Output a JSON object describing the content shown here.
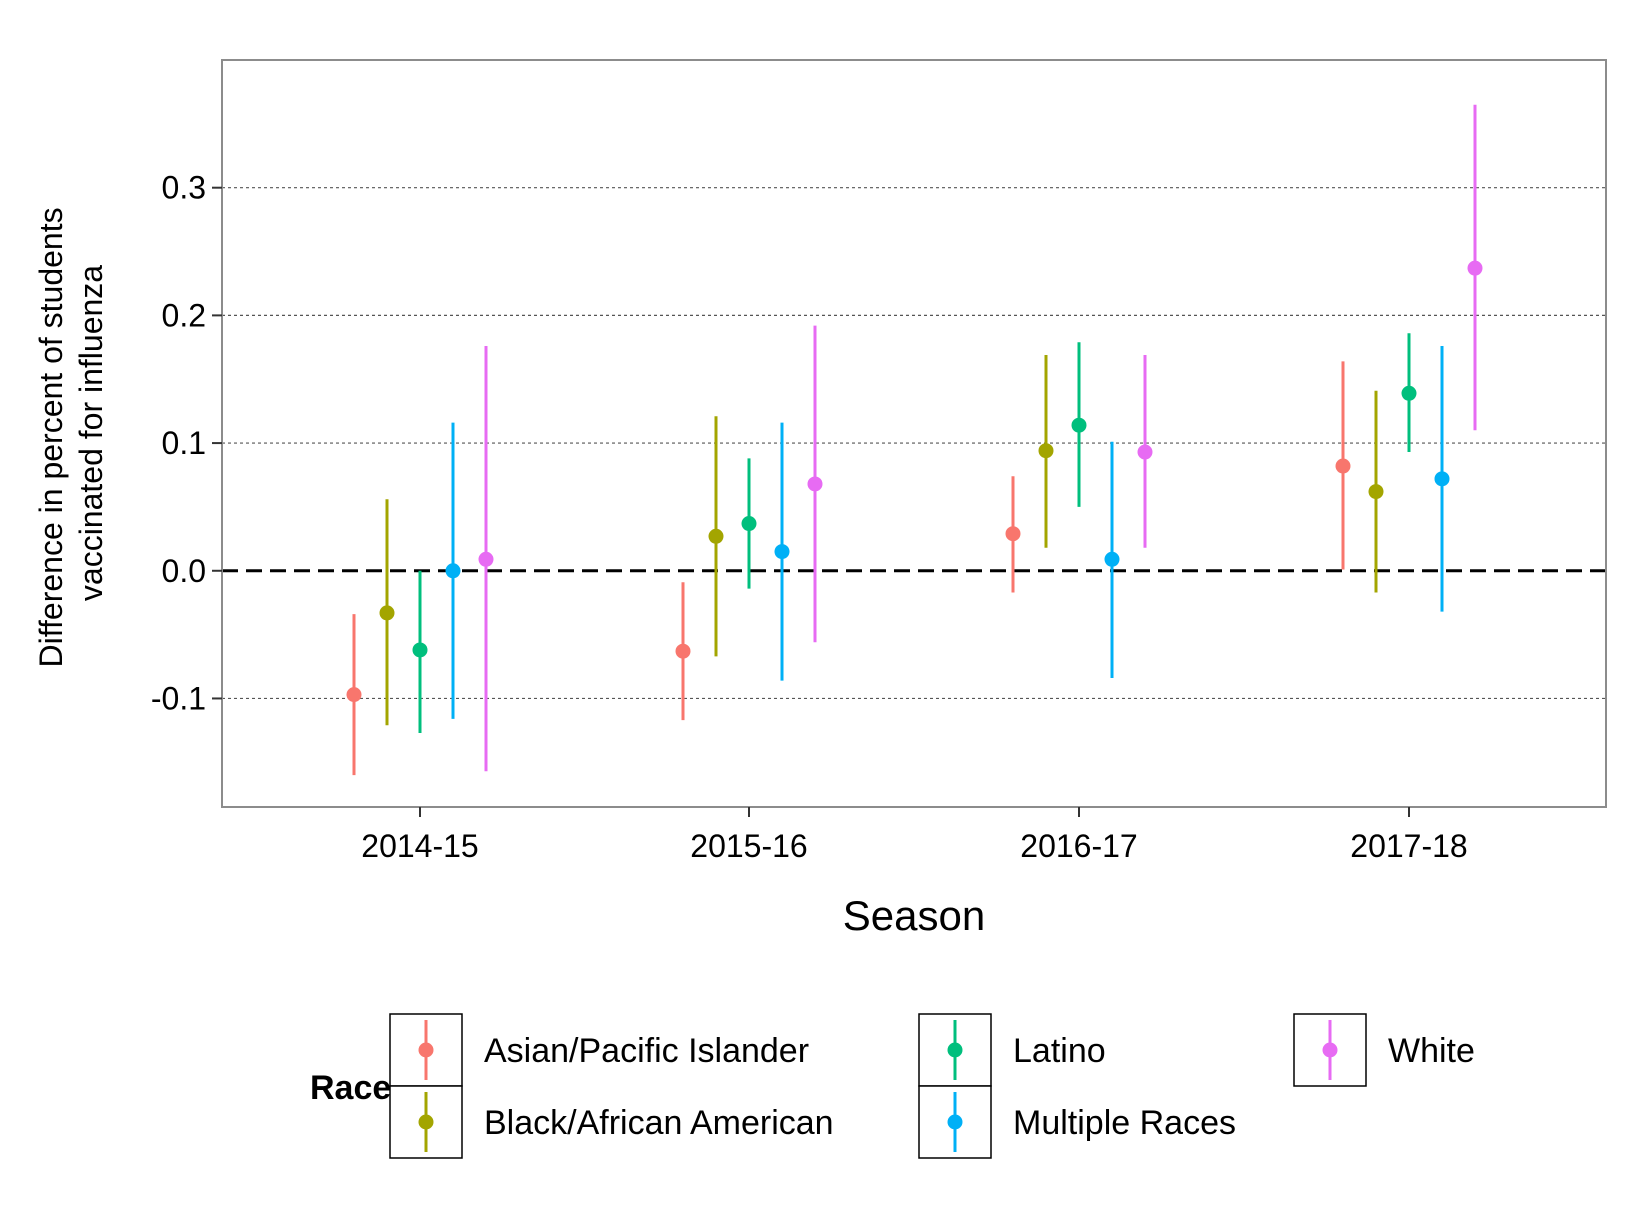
{
  "chart_data": {
    "type": "scatter",
    "subtype": "point-range (dodged)",
    "xlabel": "Season",
    "ylabel_lines": [
      "Difference in percent of students",
      "vaccinated for influenza"
    ],
    "categories": [
      "2014-15",
      "2015-16",
      "2016-17",
      "2017-18"
    ],
    "yticks": [
      -0.1,
      0.0,
      0.1,
      0.2,
      0.3
    ],
    "ytick_labels": [
      "-0.1",
      "0.0",
      "0.1",
      "0.2",
      "0.3"
    ],
    "ylim": [
      -0.185,
      0.4
    ],
    "reference_line": {
      "y": 0.0,
      "style": "dashed"
    },
    "grid": "horizontal-dotted",
    "legend": {
      "title": "Race",
      "position": "bottom",
      "columns": [
        [
          "Asian/Pacific Islander",
          "Black/African American"
        ],
        [
          "Latino",
          "Multiple Races"
        ],
        [
          "White"
        ]
      ]
    },
    "series": [
      {
        "name": "Asian/Pacific Islander",
        "color": "#F8766D",
        "estimate": [
          -0.097,
          -0.063,
          0.029,
          0.082
        ],
        "lower": [
          -0.16,
          -0.117,
          -0.017,
          0.001
        ],
        "upper": [
          -0.034,
          -0.009,
          0.074,
          0.164
        ]
      },
      {
        "name": "Black/African American",
        "color": "#A3A500",
        "estimate": [
          -0.033,
          0.027,
          0.094,
          0.062
        ],
        "lower": [
          -0.121,
          -0.067,
          0.018,
          -0.017
        ],
        "upper": [
          0.056,
          0.121,
          0.169,
          0.141
        ]
      },
      {
        "name": "Latino",
        "color": "#00BF7D",
        "estimate": [
          -0.062,
          0.037,
          0.114,
          0.139
        ],
        "lower": [
          -0.127,
          -0.014,
          0.05,
          0.093
        ],
        "upper": [
          0.0,
          0.088,
          0.179,
          0.186
        ]
      },
      {
        "name": "Multiple Races",
        "color": "#00B0F6",
        "estimate": [
          0.0,
          0.015,
          0.009,
          0.072
        ],
        "lower": [
          -0.116,
          -0.086,
          -0.084,
          -0.032
        ],
        "upper": [
          0.116,
          0.116,
          0.101,
          0.176
        ]
      },
      {
        "name": "White",
        "color": "#E76BF3",
        "estimate": [
          0.009,
          0.068,
          0.093,
          0.237
        ],
        "lower": [
          -0.157,
          -0.056,
          0.018,
          0.11
        ],
        "upper": [
          0.176,
          0.192,
          0.169,
          0.365
        ]
      }
    ]
  }
}
